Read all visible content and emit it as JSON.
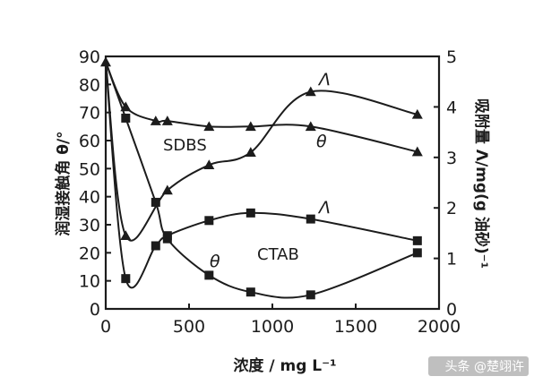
{
  "chart_data": {
    "type": "line",
    "xlabel": "浓度 / mg L⁻¹",
    "ylabel_left": "润湿接触角 θ/°",
    "ylabel_right": "吸附量 Λ/mg(g 油砂)⁻¹",
    "xlim": [
      0,
      2000
    ],
    "ylim_left": [
      0,
      90
    ],
    "ylim_right": [
      0,
      5
    ],
    "x_ticks": [
      0,
      500,
      1000,
      1500,
      2000
    ],
    "y_ticks_left": [
      0,
      10,
      20,
      30,
      40,
      50,
      60,
      70,
      80,
      90
    ],
    "y_ticks_right": [
      0,
      1,
      2,
      3,
      4,
      5
    ],
    "grid": false,
    "series": [
      {
        "id": "sdbs_theta",
        "axis": "left",
        "marker": "triangle",
        "points": [
          [
            0,
            88
          ],
          [
            120,
            72
          ],
          [
            300,
            67
          ],
          [
            370,
            67
          ],
          [
            620,
            65
          ],
          [
            870,
            65
          ],
          [
            1230,
            65
          ],
          [
            1870,
            56
          ]
        ]
      },
      {
        "id": "sdbs_adsorption",
        "axis": "right",
        "marker": "triangle",
        "points": [
          [
            0,
            4.9
          ],
          [
            120,
            1.45
          ],
          [
            370,
            2.35
          ],
          [
            620,
            2.85
          ],
          [
            870,
            3.1
          ],
          [
            1230,
            4.3
          ],
          [
            1870,
            3.85
          ]
        ]
      },
      {
        "id": "ctab_theta",
        "axis": "left",
        "marker": "square",
        "points": [
          [
            0,
            88
          ],
          [
            120,
            68
          ],
          [
            300,
            38
          ],
          [
            370,
            25
          ],
          [
            620,
            12
          ],
          [
            870,
            6
          ],
          [
            1230,
            5
          ],
          [
            1870,
            20
          ]
        ]
      },
      {
        "id": "ctab_adsorption",
        "axis": "right",
        "marker": "square",
        "points": [
          [
            0,
            4.9
          ],
          [
            120,
            0.6
          ],
          [
            300,
            1.25
          ],
          [
            370,
            1.45
          ],
          [
            620,
            1.75
          ],
          [
            870,
            1.9
          ],
          [
            1230,
            1.78
          ],
          [
            1870,
            1.35
          ]
        ]
      }
    ],
    "annotations": [
      {
        "id": "label_sdbs",
        "text": "SDBS"
      },
      {
        "id": "label_ctab",
        "text": "CTAB"
      },
      {
        "id": "label_sdbs_lambda",
        "text": "Λ"
      },
      {
        "id": "label_sdbs_theta",
        "text": "θ"
      },
      {
        "id": "label_ctab_lambda",
        "text": "Λ"
      },
      {
        "id": "label_ctab_theta",
        "text": "θ"
      }
    ],
    "watermark": "头条 @楚翊许"
  }
}
